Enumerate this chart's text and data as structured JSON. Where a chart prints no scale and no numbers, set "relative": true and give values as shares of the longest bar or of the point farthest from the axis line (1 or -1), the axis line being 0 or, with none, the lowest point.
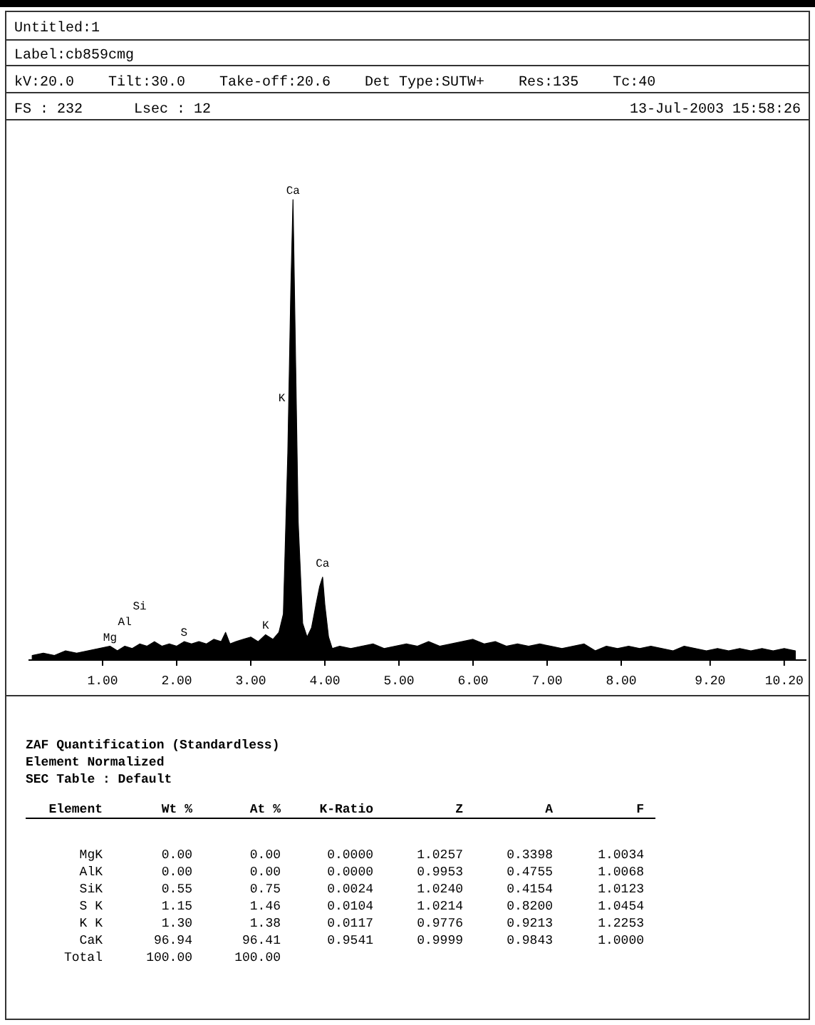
{
  "chart_data": {
    "type": "area",
    "relative": true,
    "title": "Untitled:1",
    "subtitle": "Label:cb859cmg",
    "xlim": [
      0,
      10.5
    ],
    "xticks": [
      {
        "value": 1,
        "label": "1.00"
      },
      {
        "value": 2,
        "label": "2.00"
      },
      {
        "value": 3,
        "label": "3.00"
      },
      {
        "value": 4,
        "label": "4.00"
      },
      {
        "value": 5,
        "label": "5.00"
      },
      {
        "value": 6,
        "label": "6.00"
      },
      {
        "value": 7,
        "label": "7.00"
      },
      {
        "value": 8,
        "label": "8.00"
      },
      {
        "value": 9.2,
        "label": "9.20"
      },
      {
        "value": 10.2,
        "label": "10.20"
      }
    ],
    "series": [
      {
        "color": "#000000",
        "x": [
          0.05,
          0.2,
          0.35,
          0.5,
          0.65,
          0.8,
          0.95,
          1.1,
          1.2,
          1.3,
          1.4,
          1.5,
          1.6,
          1.7,
          1.8,
          1.9,
          2.0,
          2.1,
          2.2,
          2.3,
          2.4,
          2.5,
          2.6,
          2.66,
          2.72,
          2.8,
          2.9,
          3.0,
          3.1,
          3.2,
          3.3,
          3.38,
          3.44,
          3.5,
          3.54,
          3.57,
          3.6,
          3.64,
          3.7,
          3.76,
          3.82,
          3.88,
          3.93,
          3.97,
          4.0,
          4.05,
          4.1,
          4.2,
          4.35,
          4.5,
          4.65,
          4.8,
          4.95,
          5.1,
          5.25,
          5.4,
          5.55,
          5.7,
          5.85,
          6.0,
          6.15,
          6.3,
          6.45,
          6.6,
          6.75,
          6.9,
          7.05,
          7.2,
          7.35,
          7.5,
          7.65,
          7.8,
          7.95,
          8.1,
          8.25,
          8.4,
          8.55,
          8.7,
          8.85,
          9.0,
          9.15,
          9.3,
          9.45,
          9.6,
          9.75,
          9.9,
          10.05,
          10.2,
          10.35
        ],
        "values": [
          0.01,
          0.015,
          0.01,
          0.02,
          0.015,
          0.02,
          0.025,
          0.03,
          0.02,
          0.03,
          0.025,
          0.035,
          0.03,
          0.04,
          0.03,
          0.035,
          0.03,
          0.04,
          0.035,
          0.04,
          0.035,
          0.045,
          0.04,
          0.06,
          0.035,
          0.04,
          0.045,
          0.05,
          0.04,
          0.055,
          0.045,
          0.06,
          0.1,
          0.45,
          0.8,
          1.0,
          0.7,
          0.3,
          0.08,
          0.05,
          0.07,
          0.12,
          0.16,
          0.18,
          0.12,
          0.05,
          0.025,
          0.03,
          0.025,
          0.03,
          0.035,
          0.025,
          0.03,
          0.035,
          0.03,
          0.04,
          0.03,
          0.035,
          0.04,
          0.045,
          0.035,
          0.04,
          0.03,
          0.035,
          0.03,
          0.035,
          0.03,
          0.025,
          0.03,
          0.035,
          0.02,
          0.03,
          0.025,
          0.03,
          0.025,
          0.03,
          0.025,
          0.02,
          0.03,
          0.025,
          0.02,
          0.025,
          0.02,
          0.025,
          0.02,
          0.025,
          0.02,
          0.025,
          0.02
        ]
      }
    ],
    "annotations": [
      "kV:20.0  Tilt:30.0  Take-off:20.6  Det Type:SUTW+  Res:135  Tc:40",
      "FS : 232  Lsec : 12",
      "13-Jul-2003 15:58:26",
      "ZAF Quantification (Standardless)",
      "Element Normalized",
      "SEC Table : Default",
      "Element  Wt %  At %  K-Ratio  Z  A  F",
      "MgK  0.00  0.00  0.0000  1.0257  0.3398  1.0034",
      "AlK  0.00  0.00  0.0000  0.9953  0.4755  1.0068",
      "SiK  0.55  0.75  0.0024  1.0240  0.4154  1.0123",
      "S K  1.15  1.46  0.0104  1.0214  0.8200  1.0454",
      "K K  1.30  1.38  0.0117  0.9776  0.9213  1.2253",
      "CaK  96.94  96.41  0.9541  0.9999  0.9843  1.0000",
      "Total  100.00  100.00",
      {
        "text": "Ca",
        "x": 3.57,
        "y": 1.0
      },
      {
        "text": "K",
        "x": 3.42,
        "y": 0.55
      },
      {
        "text": "Ca",
        "x": 3.97,
        "y": 0.19
      },
      {
        "text": "Mg",
        "x": 1.1,
        "y": 0.03
      },
      {
        "text": "Al",
        "x": 1.3,
        "y": 0.03
      },
      {
        "text": "Si",
        "x": 1.5,
        "y": 0.035
      },
      {
        "text": "S",
        "x": 2.1,
        "y": 0.04
      },
      {
        "text": "K",
        "x": 3.2,
        "y": 0.055
      }
    ]
  }
}
